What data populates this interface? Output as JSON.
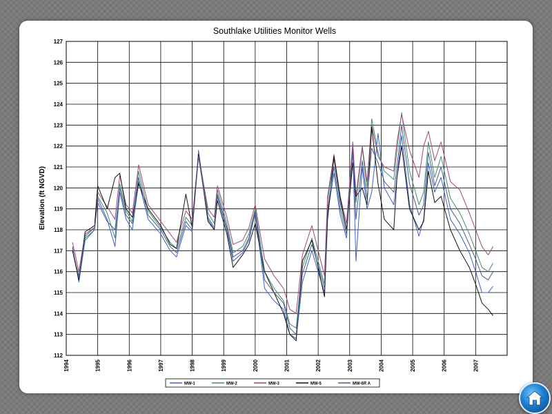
{
  "chart_data": {
    "type": "line",
    "title": "Southlake Utilities Monitor Wells",
    "xlabel": "",
    "ylabel": "Elevation (ft NGVD)",
    "xlim": [
      1994,
      2008
    ],
    "ylim": [
      112,
      127
    ],
    "grid": true,
    "legend_position": "bottom-center",
    "x_tick_labels": [
      "1994",
      "1995",
      "1996",
      "1997",
      "1998",
      "1999",
      "2000",
      "2001",
      "2002",
      "2003",
      "2004",
      "2005",
      "2006",
      "2007"
    ],
    "y_tick_labels": [
      "112",
      "113",
      "114",
      "115",
      "116",
      "117",
      "118",
      "119",
      "120",
      "121",
      "122",
      "123",
      "124",
      "125",
      "126",
      "127"
    ],
    "series": [
      {
        "name": "MW-1",
        "color": "#3a5fcd",
        "x": [
          1994.2,
          1994.4,
          1994.6,
          1994.9,
          1995.0,
          1995.3,
          1995.55,
          1995.7,
          1995.9,
          1996.1,
          1996.3,
          1996.6,
          1997.0,
          1997.3,
          1997.5,
          1997.8,
          1998.0,
          1998.2,
          1998.5,
          1998.7,
          1998.8,
          1999.1,
          1999.3,
          1999.6,
          1999.8,
          2000.0,
          2000.3,
          2000.6,
          2000.9,
          2001.1,
          2001.3,
          2001.5,
          2001.8,
          2002.0,
          2002.2,
          2002.3,
          2002.5,
          2002.7,
          2002.9,
          2003.1,
          2003.2,
          2003.4,
          2003.55,
          2003.7,
          2003.9,
          2004.1,
          2004.4,
          2004.5,
          2004.65,
          2004.9,
          2005.2,
          2005.35,
          2005.5,
          2005.7,
          2005.9,
          2006.2,
          2006.5,
          2006.8,
          2007.0,
          2007.2,
          2007.4,
          2007.55
        ],
        "y": [
          117.2,
          115.5,
          117.5,
          118.0,
          119.5,
          118.5,
          117.2,
          119.8,
          118.5,
          118.0,
          120.3,
          118.5,
          117.8,
          117.0,
          116.7,
          118.2,
          117.9,
          121.8,
          118.5,
          118.0,
          119.6,
          118.0,
          116.5,
          116.9,
          117.5,
          118.8,
          115.2,
          114.6,
          114.2,
          113.0,
          112.8,
          115.5,
          117.0,
          116.0,
          115.0,
          118.8,
          120.7,
          118.7,
          117.6,
          121.8,
          116.5,
          121.0,
          119.0,
          119.8,
          122.6,
          120.0,
          119.2,
          120.5,
          122.5,
          119.2,
          117.7,
          118.5,
          121.2,
          119.8,
          120.5,
          118.5,
          117.8,
          116.9,
          116.0,
          115.0,
          115.0,
          115.3
        ]
      },
      {
        "name": "MW-2",
        "color": "#3f8f68",
        "x": [
          1994.2,
          1994.4,
          1994.6,
          1994.9,
          1995.0,
          1995.3,
          1995.55,
          1995.7,
          1995.9,
          1996.1,
          1996.3,
          1996.6,
          1997.0,
          1997.3,
          1997.5,
          1997.8,
          1998.0,
          1998.2,
          1998.5,
          1998.7,
          1998.8,
          1999.1,
          1999.3,
          1999.6,
          1999.8,
          2000.0,
          2000.3,
          2000.6,
          2000.9,
          2001.1,
          2001.3,
          2001.5,
          2001.8,
          2002.0,
          2002.2,
          2002.3,
          2002.5,
          2002.7,
          2002.9,
          2003.1,
          2003.2,
          2003.4,
          2003.55,
          2003.7,
          2003.9,
          2004.1,
          2004.4,
          2004.5,
          2004.65,
          2004.9,
          2005.2,
          2005.35,
          2005.5,
          2005.7,
          2005.9,
          2006.2,
          2006.5,
          2006.8,
          2007.0,
          2007.2,
          2007.4,
          2007.55
        ],
        "y": [
          117.0,
          115.8,
          117.6,
          118.0,
          119.6,
          118.8,
          117.6,
          120.2,
          118.9,
          118.4,
          120.8,
          118.9,
          118.1,
          117.4,
          117.1,
          118.6,
          118.2,
          121.7,
          118.8,
          118.3,
          119.9,
          118.3,
          116.9,
          117.2,
          117.8,
          119.0,
          116.0,
          115.2,
          114.6,
          113.5,
          113.3,
          116.2,
          117.6,
          116.5,
          115.4,
          119.4,
          121.4,
          119.3,
          118.0,
          122.0,
          119.3,
          121.9,
          120.0,
          123.3,
          121.7,
          120.8,
          120.4,
          121.8,
          123.6,
          120.8,
          119.2,
          119.8,
          122.2,
          120.5,
          121.5,
          119.5,
          118.8,
          117.8,
          117.0,
          116.2,
          116.0,
          116.4
        ]
      },
      {
        "name": "MW-3",
        "color": "#a3457a",
        "x": [
          1994.2,
          1994.4,
          1994.6,
          1994.9,
          1995.0,
          1995.3,
          1995.55,
          1995.7,
          1995.9,
          1996.1,
          1996.3,
          1996.6,
          1997.0,
          1997.3,
          1997.5,
          1997.8,
          1998.0,
          1998.2,
          1998.5,
          1998.7,
          1998.8,
          1999.1,
          1999.3,
          1999.6,
          1999.8,
          2000.0,
          2000.3,
          2000.6,
          2000.9,
          2001.1,
          2001.3,
          2001.5,
          2001.8,
          2002.0,
          2002.2,
          2002.3,
          2002.5,
          2002.7,
          2002.9,
          2003.1,
          2003.2,
          2003.4,
          2003.55,
          2003.7,
          2003.9,
          2004.1,
          2004.4,
          2004.5,
          2004.65,
          2004.9,
          2005.2,
          2005.35,
          2005.5,
          2005.7,
          2005.9,
          2006.2,
          2006.5,
          2006.8,
          2007.0,
          2007.2,
          2007.4,
          2007.55
        ],
        "y": [
          117.4,
          116.0,
          117.8,
          118.1,
          119.8,
          119.1,
          118.5,
          120.6,
          119.2,
          118.8,
          121.1,
          119.2,
          118.4,
          117.8,
          117.4,
          118.9,
          118.5,
          121.6,
          119.0,
          118.6,
          120.1,
          118.6,
          117.3,
          117.5,
          118.1,
          119.2,
          116.6,
          115.8,
          115.2,
          114.2,
          114.0,
          116.8,
          118.2,
          117.0,
          115.8,
          119.6,
          121.6,
          119.6,
          118.3,
          122.2,
          119.6,
          122.0,
          120.3,
          123.0,
          121.5,
          121.0,
          120.8,
          122.2,
          123.5,
          121.8,
          120.5,
          122.0,
          122.7,
          121.3,
          122.2,
          120.3,
          119.9,
          118.8,
          118.0,
          117.2,
          116.8,
          117.2
        ]
      },
      {
        "name": "MW-5",
        "color": "#111111",
        "x": [
          1994.2,
          1994.4,
          1994.6,
          1994.9,
          1995.0,
          1995.3,
          1995.55,
          1995.7,
          1995.9,
          1996.1,
          1996.3,
          1996.6,
          1997.0,
          1997.3,
          1997.5,
          1997.8,
          1998.0,
          1998.2,
          1998.5,
          1998.7,
          1998.8,
          1999.1,
          1999.3,
          1999.6,
          1999.8,
          2000.0,
          2000.3,
          2000.6,
          2000.9,
          2001.1,
          2001.3,
          2001.5,
          2001.8,
          2002.0,
          2002.2,
          2002.3,
          2002.5,
          2002.7,
          2002.9,
          2003.1,
          2003.2,
          2003.4,
          2003.55,
          2003.7,
          2003.9,
          2004.1,
          2004.4,
          2004.5,
          2004.65,
          2004.9,
          2005.2,
          2005.35,
          2005.5,
          2005.7,
          2005.9,
          2006.2,
          2006.5,
          2006.8,
          2007.0,
          2007.2,
          2007.4,
          2007.55
        ],
        "y": [
          117.0,
          115.6,
          117.9,
          118.2,
          120.1,
          119.0,
          120.5,
          120.7,
          119.0,
          118.6,
          120.2,
          119.0,
          118.2,
          117.3,
          117.1,
          119.7,
          118.1,
          121.6,
          118.4,
          118.0,
          119.4,
          117.8,
          116.2,
          116.8,
          117.3,
          118.3,
          116.0,
          115.0,
          114.0,
          113.0,
          112.7,
          116.5,
          117.5,
          116.2,
          114.8,
          118.5,
          121.5,
          119.5,
          118.0,
          121.2,
          119.6,
          120.0,
          119.2,
          122.9,
          120.2,
          118.5,
          118.0,
          120.5,
          122.0,
          119.0,
          118.0,
          118.4,
          120.8,
          119.3,
          119.6,
          118.0,
          117.0,
          116.2,
          115.4,
          114.5,
          114.2,
          113.9
        ]
      },
      {
        "name": "MW-6R A",
        "color": "#4b5a8c",
        "x": [
          1994.2,
          1994.4,
          1994.6,
          1994.9,
          1995.0,
          1995.3,
          1995.55,
          1995.7,
          1995.9,
          1996.1,
          1996.3,
          1996.6,
          1997.0,
          1997.3,
          1997.5,
          1997.8,
          1998.0,
          1998.2,
          1998.5,
          1998.7,
          1998.8,
          1999.1,
          1999.3,
          1999.6,
          1999.8,
          2000.0,
          2000.3,
          2000.6,
          2000.9,
          2001.1,
          2001.3,
          2001.5,
          2001.8,
          2002.0,
          2002.2,
          2002.3,
          2002.5,
          2002.7,
          2002.9,
          2003.1,
          2003.2,
          2003.4,
          2003.55,
          2003.7,
          2003.9,
          2004.1,
          2004.4,
          2004.5,
          2004.65,
          2004.9,
          2005.2,
          2005.35,
          2005.5,
          2005.7,
          2005.9,
          2006.2,
          2006.5,
          2006.8,
          2007.0,
          2007.2,
          2007.4,
          2007.55
        ],
        "y": [
          117.1,
          115.7,
          117.7,
          118.1,
          119.3,
          118.4,
          118.0,
          120.0,
          118.7,
          118.3,
          120.5,
          118.7,
          118.0,
          117.2,
          116.9,
          118.4,
          118.0,
          121.5,
          118.6,
          118.1,
          119.7,
          118.1,
          116.7,
          117.0,
          117.6,
          118.9,
          115.6,
          115.0,
          114.5,
          113.3,
          113.0,
          115.9,
          117.3,
          116.3,
          115.2,
          119.0,
          121.0,
          119.0,
          117.8,
          121.9,
          118.5,
          121.3,
          119.5,
          121.9,
          121.2,
          120.3,
          119.8,
          121.0,
          123.0,
          120.2,
          118.7,
          119.2,
          121.7,
          120.1,
          121.0,
          119.0,
          118.3,
          117.3,
          116.6,
          115.8,
          115.6,
          116.0
        ]
      }
    ]
  },
  "navigation": {
    "home_icon": "home-icon"
  }
}
